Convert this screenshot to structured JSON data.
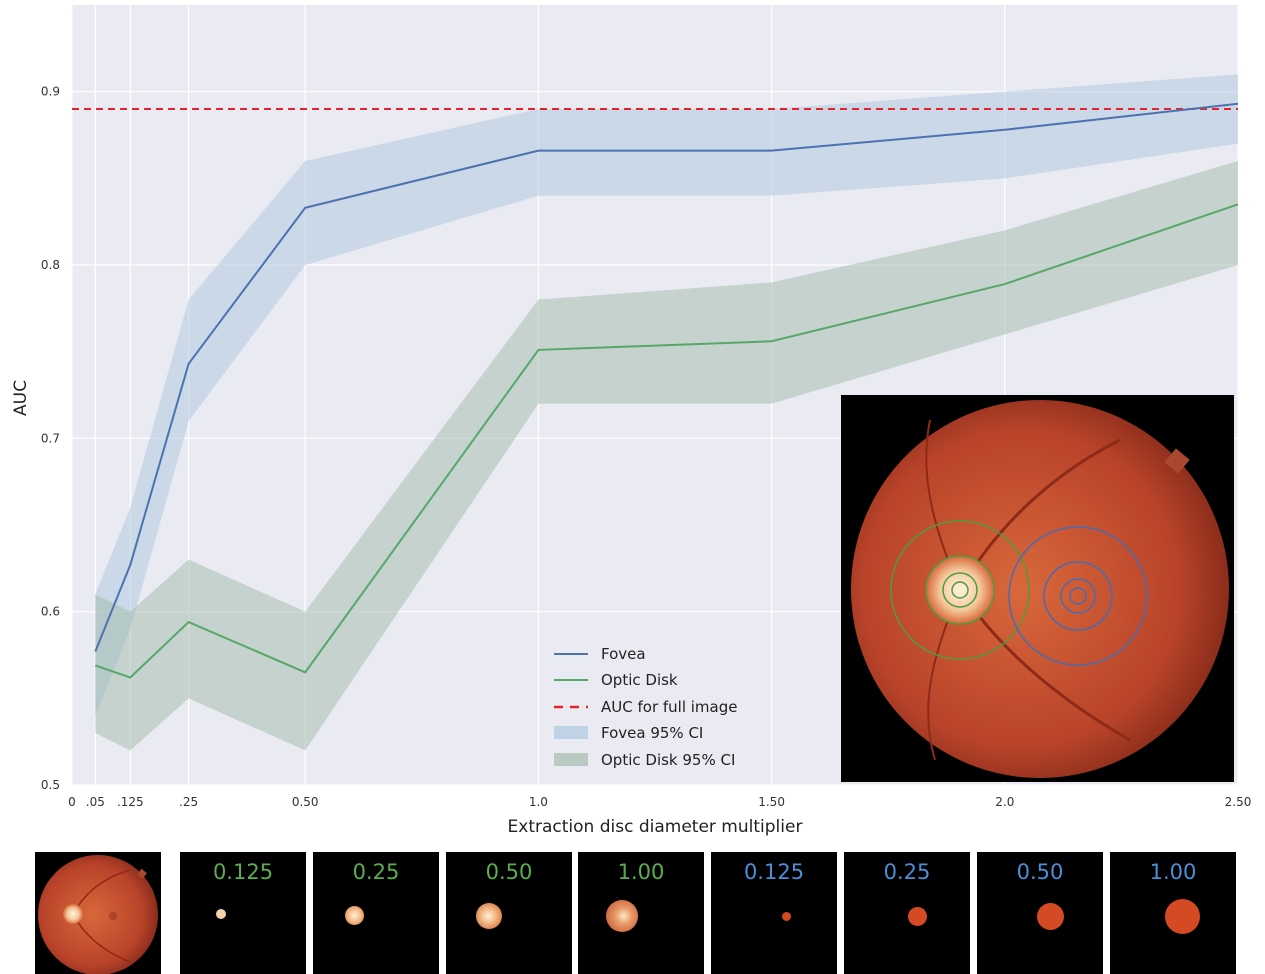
{
  "chart_data": {
    "type": "line",
    "xlabel": "Extraction disc diameter multiplier",
    "ylabel": "AUC",
    "xlim": [
      0,
      2.5
    ],
    "ylim": [
      0.5,
      0.95
    ],
    "grid": true,
    "x_ticks": [
      {
        "value": 0,
        "label": "0"
      },
      {
        "value": 0.05,
        "label": ".05"
      },
      {
        "value": 0.125,
        "label": ".125"
      },
      {
        "value": 0.25,
        "label": ".25"
      },
      {
        "value": 0.5,
        "label": "0.50"
      },
      {
        "value": 1.0,
        "label": "1.0"
      },
      {
        "value": 1.5,
        "label": "1.50"
      },
      {
        "value": 2.0,
        "label": "2.0"
      },
      {
        "value": 2.5,
        "label": "2.50"
      }
    ],
    "y_ticks": [
      {
        "value": 0.5,
        "label": "0.5"
      },
      {
        "value": 0.6,
        "label": "0.6"
      },
      {
        "value": 0.7,
        "label": "0.7"
      },
      {
        "value": 0.8,
        "label": "0.8"
      },
      {
        "value": 0.9,
        "label": "0.9"
      }
    ],
    "x": [
      0.05,
      0.125,
      0.25,
      0.5,
      1.0,
      1.5,
      2.0,
      2.5
    ],
    "series": [
      {
        "name": "Fovea",
        "color": "#4c72b0",
        "values": [
          0.577,
          0.627,
          0.743,
          0.833,
          0.866,
          0.866,
          0.878,
          0.893
        ]
      },
      {
        "name": "Optic Disk",
        "color": "#55a868",
        "values": [
          0.569,
          0.562,
          0.594,
          0.565,
          0.751,
          0.756,
          0.789,
          0.835
        ]
      }
    ],
    "bands": [
      {
        "name": "Fovea 95% CI",
        "color": "#a9c6de",
        "lower": [
          0.54,
          0.59,
          0.71,
          0.8,
          0.84,
          0.84,
          0.85,
          0.87
        ],
        "upper": [
          0.61,
          0.66,
          0.78,
          0.86,
          0.89,
          0.89,
          0.9,
          0.91
        ]
      },
      {
        "name": "Optic Disk 95% CI",
        "color": "#9fb9a9",
        "lower": [
          0.53,
          0.52,
          0.55,
          0.52,
          0.72,
          0.72,
          0.76,
          0.8
        ],
        "upper": [
          0.61,
          0.6,
          0.63,
          0.6,
          0.78,
          0.79,
          0.82,
          0.86
        ]
      }
    ],
    "reference_line": {
      "name": "AUC for full image",
      "y": 0.89,
      "color": "#e8202a"
    },
    "legend_placement": "lower-center"
  },
  "thumbnails": [
    {
      "label": "",
      "type": "fundus"
    },
    {
      "label": "0.125",
      "color": "#5aae4e",
      "target": "optic-disk",
      "multiplier": 0.125
    },
    {
      "label": "0.25",
      "color": "#5aae4e",
      "target": "optic-disk",
      "multiplier": 0.25
    },
    {
      "label": "0.50",
      "color": "#5aae4e",
      "target": "optic-disk",
      "multiplier": 0.5
    },
    {
      "label": "1.00",
      "color": "#5aae4e",
      "target": "optic-disk",
      "multiplier": 1.0
    },
    {
      "label": "0.125",
      "color": "#4a8fd8",
      "target": "fovea",
      "multiplier": 0.125
    },
    {
      "label": "0.25",
      "color": "#4a8fd8",
      "target": "fovea",
      "multiplier": 0.25
    },
    {
      "label": "0.50",
      "color": "#4a8fd8",
      "target": "fovea",
      "multiplier": 0.5
    },
    {
      "label": "1.00",
      "color": "#4a8fd8",
      "target": "fovea",
      "multiplier": 1.0
    }
  ]
}
